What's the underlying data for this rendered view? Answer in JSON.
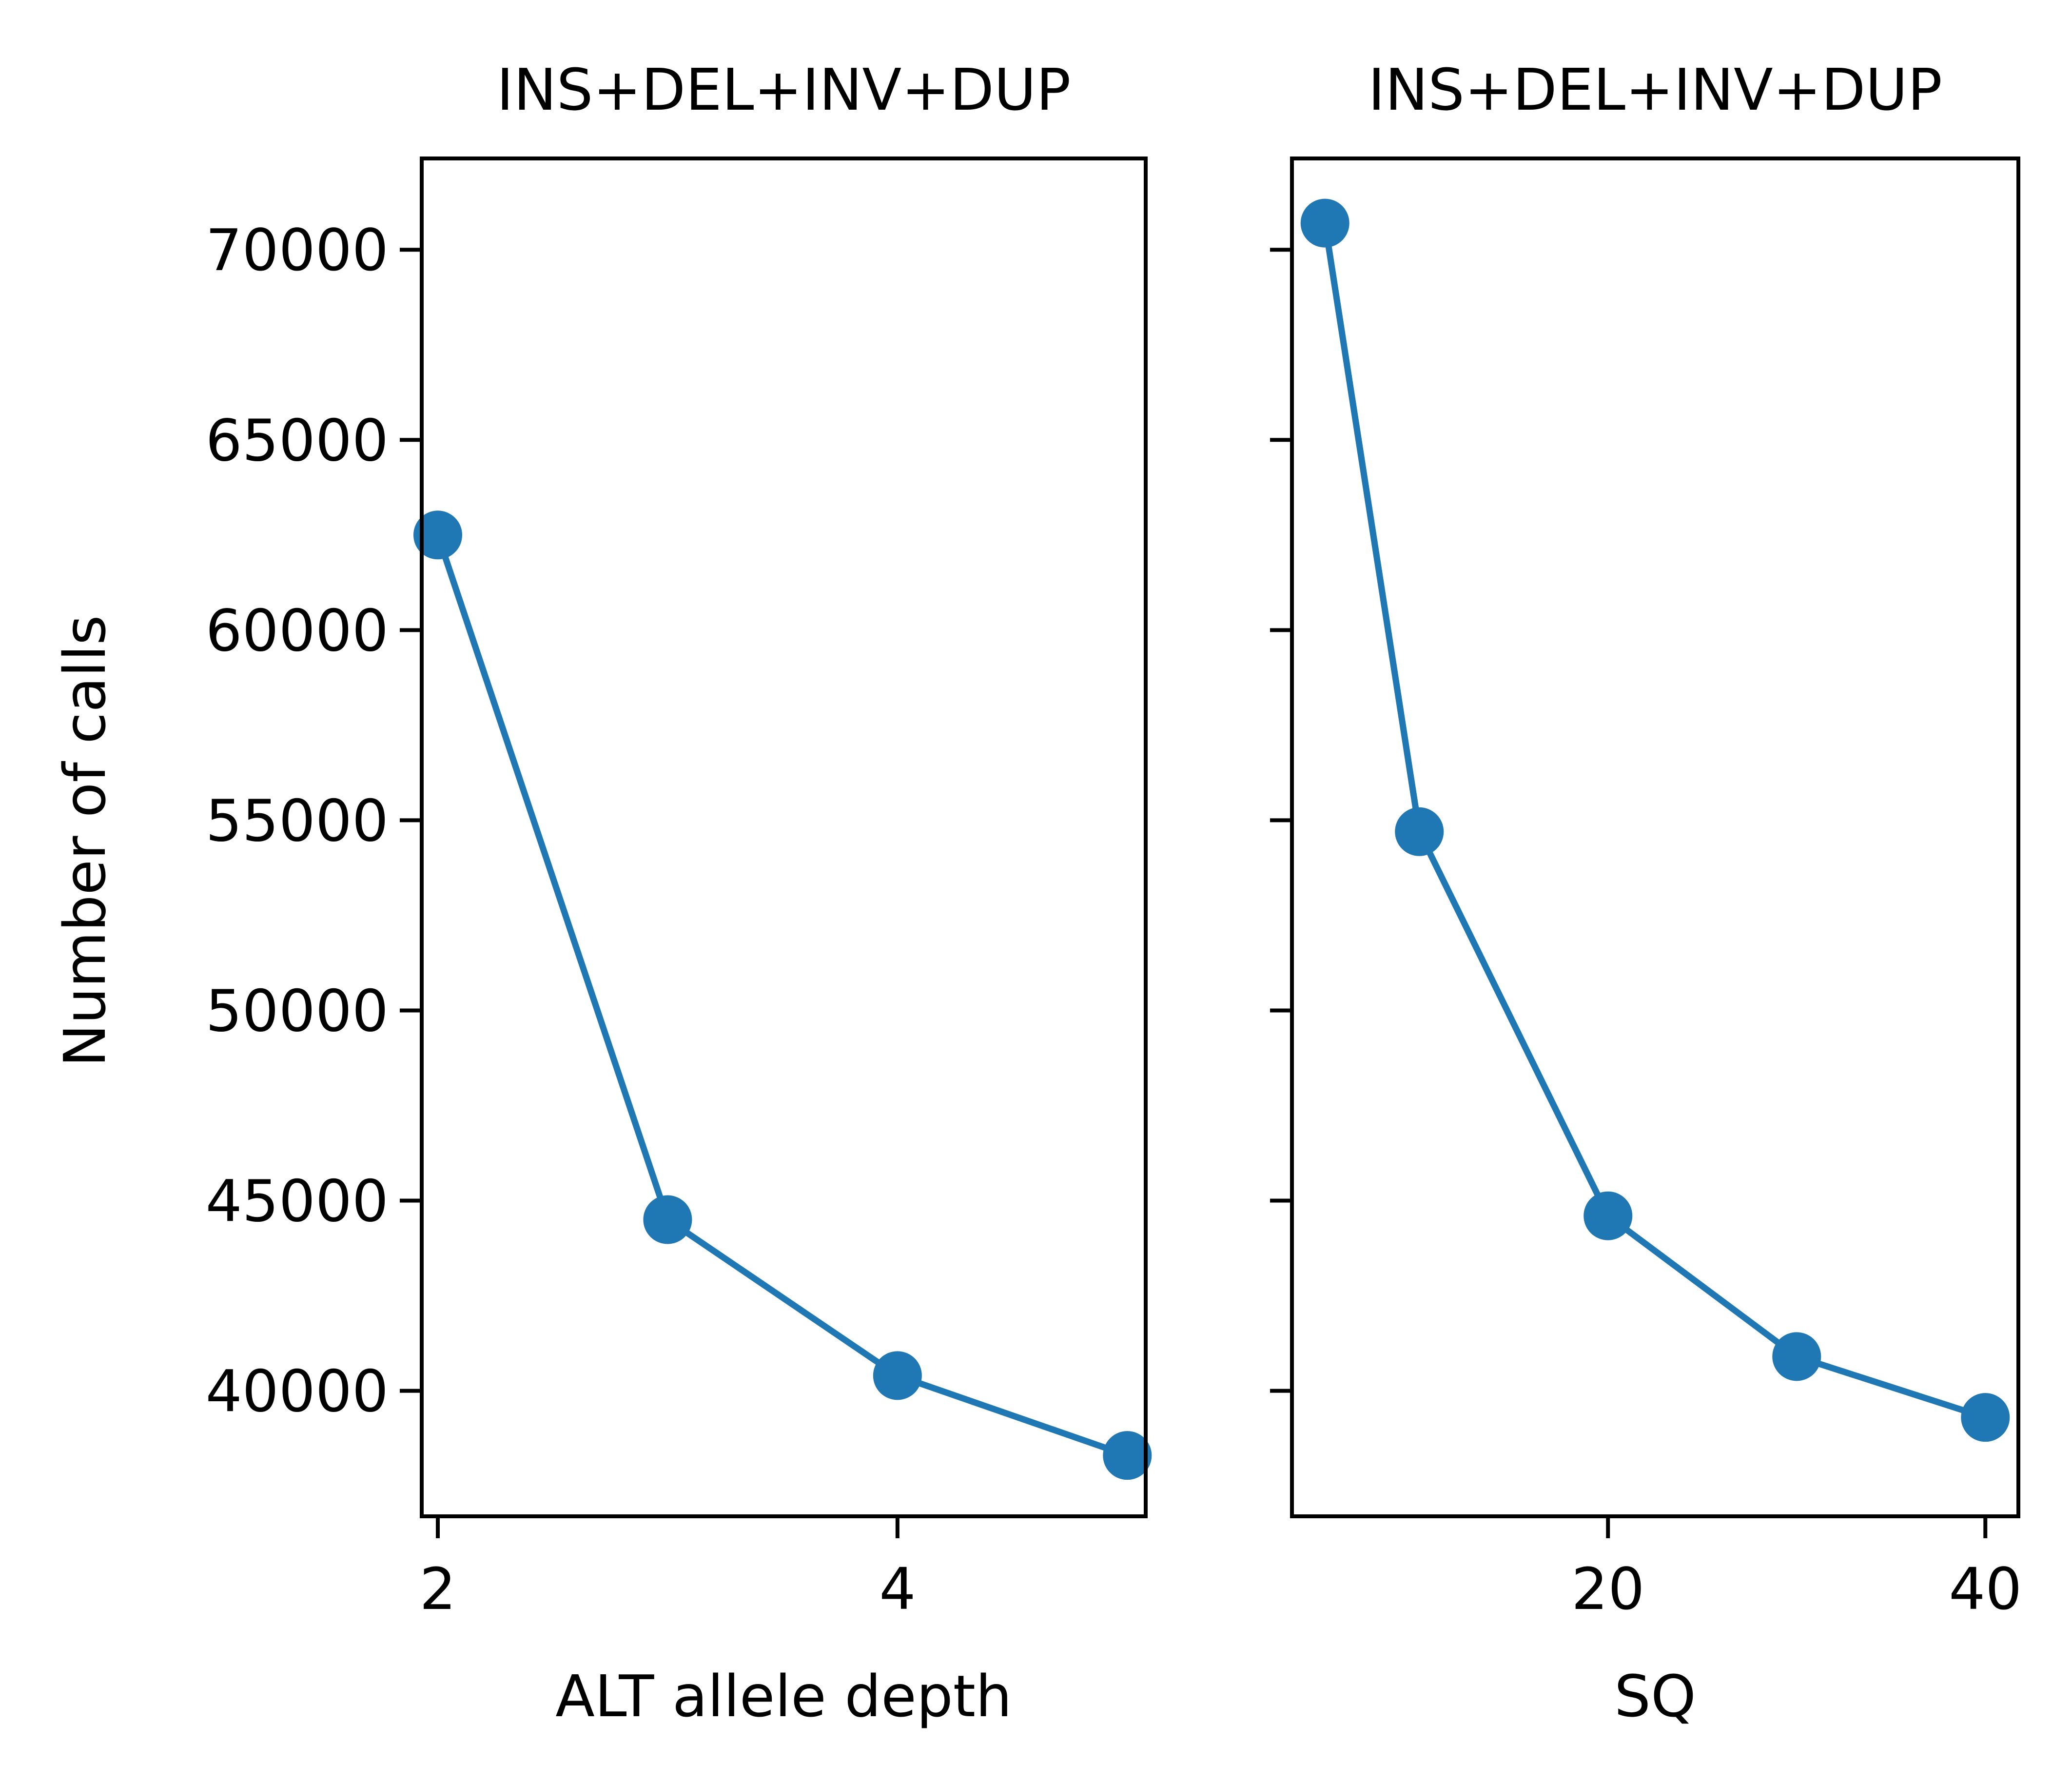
{
  "ylabel": "Number of calls",
  "chart_data": [
    {
      "type": "line",
      "title": "INS+DEL+INV+DUP",
      "xlabel": "ALT allele depth",
      "ylabel": "Number of calls",
      "x": [
        2,
        3,
        4,
        5
      ],
      "series": [
        {
          "values": [
            62500,
            44500,
            40400,
            38300
          ]
        }
      ],
      "xticks": [
        2,
        4
      ],
      "xlim": [
        1.93,
        5.08
      ],
      "yticks": [
        40000,
        45000,
        50000,
        55000,
        60000,
        65000,
        70000
      ],
      "ylim": [
        36700,
        72400
      ],
      "marker": "circle",
      "grid": false,
      "color": "#1f77b4"
    },
    {
      "type": "line",
      "title": "INS+DEL+INV+DUP",
      "xlabel": "SQ",
      "ylabel": "",
      "x": [
        5,
        10,
        20,
        30,
        40
      ],
      "series": [
        {
          "values": [
            70700,
            54700,
            44600,
            40900,
            39300
          ]
        }
      ],
      "xticks": [
        20,
        40
      ],
      "xlim": [
        3.25,
        41.75
      ],
      "yticks": [
        40000,
        45000,
        50000,
        55000,
        60000,
        65000,
        70000
      ],
      "ylim": [
        36700,
        72400
      ],
      "marker": "circle",
      "grid": false,
      "color": "#1f77b4"
    }
  ]
}
